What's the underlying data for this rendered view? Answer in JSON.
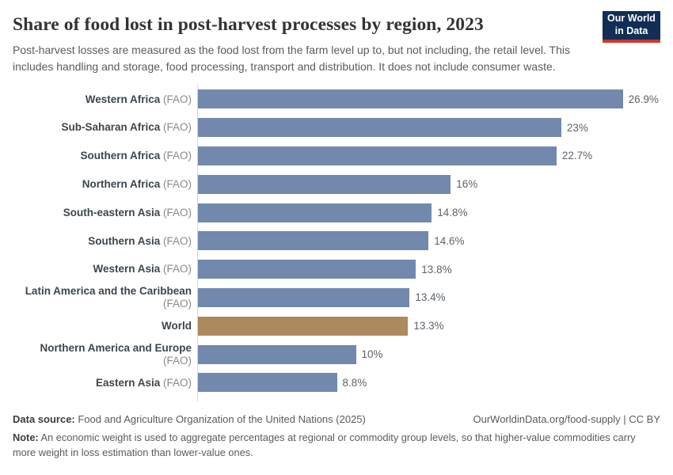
{
  "header": {
    "title": "Share of food lost in post-harvest processes by region, 2023",
    "subtitle": "Post-harvest losses are measured as the food lost from the farm level up to, but not including, the retail level. This includes handling and storage, food processing, transport and distribution. It does not include consumer waste.",
    "logo": {
      "line1": "Our World",
      "line2": "in Data"
    }
  },
  "chart_data": {
    "type": "bar",
    "orientation": "horizontal",
    "title": "Share of food lost in post-harvest processes by region, 2023",
    "unit": "%",
    "xlim": [
      0,
      26.9
    ],
    "grid": false,
    "legend": "none",
    "categories": [
      "Western Africa",
      "Sub-Saharan Africa",
      "Southern Africa",
      "Northern Africa",
      "South-eastern Asia",
      "Southern Asia",
      "Western Asia",
      "Latin America and the Caribbean",
      "World",
      "Northern America and Europe",
      "Eastern Asia"
    ],
    "bars": [
      {
        "label": "Western Africa",
        "source": " (FAO)",
        "value": 26.9,
        "display": "26.9%",
        "color": "#7289ad"
      },
      {
        "label": "Sub-Saharan Africa",
        "source": " (FAO)",
        "value": 23,
        "display": "23%",
        "color": "#7289ad"
      },
      {
        "label": "Southern Africa",
        "source": " (FAO)",
        "value": 22.7,
        "display": "22.7%",
        "color": "#7289ad"
      },
      {
        "label": "Northern Africa",
        "source": " (FAO)",
        "value": 16,
        "display": "16%",
        "color": "#7289ad"
      },
      {
        "label": "South-eastern Asia",
        "source": " (FAO)",
        "value": 14.8,
        "display": "14.8%",
        "color": "#7289ad"
      },
      {
        "label": "Southern Asia",
        "source": " (FAO)",
        "value": 14.6,
        "display": "14.6%",
        "color": "#7289ad"
      },
      {
        "label": "Western Asia",
        "source": " (FAO)",
        "value": 13.8,
        "display": "13.8%",
        "color": "#7289ad"
      },
      {
        "label": "Latin America and the Caribbean",
        "source": " (FAO)",
        "value": 13.4,
        "display": "13.4%",
        "color": "#7289ad"
      },
      {
        "label": "World",
        "source": "",
        "value": 13.3,
        "display": "13.3%",
        "color": "#ad8a5e"
      },
      {
        "label": "Northern America and Europe",
        "source": " (FAO)",
        "value": 10,
        "display": "10%",
        "color": "#7289ad"
      },
      {
        "label": "Eastern Asia",
        "source": " (FAO)",
        "value": 8.8,
        "display": "8.8%",
        "color": "#7289ad"
      }
    ]
  },
  "colors": {
    "bar_default": "#7289ad",
    "bar_world": "#ad8a5e",
    "logo_background": "#132e54",
    "logo_underline": "#d43531"
  },
  "footer": {
    "datasource_label": "Data source:",
    "datasource_value": " Food and Agriculture Organization of the United Nations (2025)",
    "link": "OurWorldinData.org/food-supply | CC BY",
    "note_label": "Note:",
    "note_value": " An economic weight is used to aggregate percentages at regional or commodity group levels, so that higher-value commodities carry more weight in loss estimation than lower-value ones."
  }
}
